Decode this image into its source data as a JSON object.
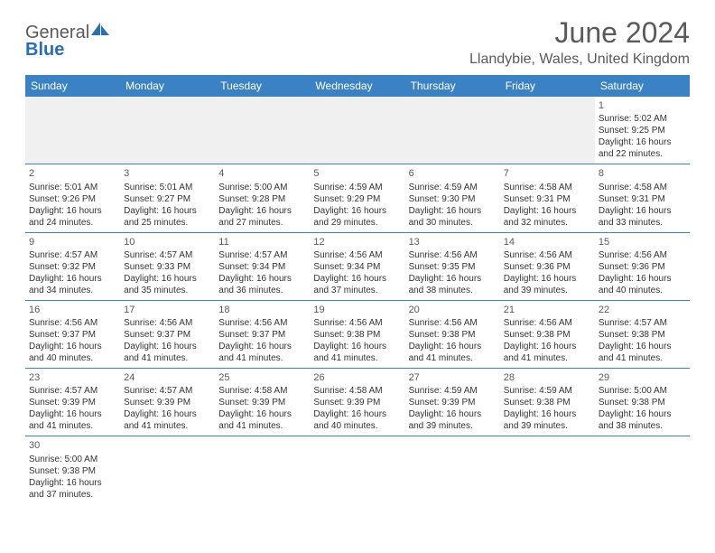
{
  "logo": {
    "text_general": "General",
    "text_blue": "Blue"
  },
  "header": {
    "month_title": "June 2024",
    "location": "Llandybie, Wales, United Kingdom"
  },
  "calendar": {
    "day_headers": [
      "Sunday",
      "Monday",
      "Tuesday",
      "Wednesday",
      "Thursday",
      "Friday",
      "Saturday"
    ],
    "header_bg": "#3b82c4",
    "header_fg": "#ffffff",
    "border_color": "#3b82c4",
    "blank_bg": "#f0f0f0",
    "weeks": [
      [
        null,
        null,
        null,
        null,
        null,
        null,
        {
          "n": "1",
          "sunrise": "Sunrise: 5:02 AM",
          "sunset": "Sunset: 9:25 PM",
          "dl1": "Daylight: 16 hours",
          "dl2": "and 22 minutes."
        }
      ],
      [
        {
          "n": "2",
          "sunrise": "Sunrise: 5:01 AM",
          "sunset": "Sunset: 9:26 PM",
          "dl1": "Daylight: 16 hours",
          "dl2": "and 24 minutes."
        },
        {
          "n": "3",
          "sunrise": "Sunrise: 5:01 AM",
          "sunset": "Sunset: 9:27 PM",
          "dl1": "Daylight: 16 hours",
          "dl2": "and 25 minutes."
        },
        {
          "n": "4",
          "sunrise": "Sunrise: 5:00 AM",
          "sunset": "Sunset: 9:28 PM",
          "dl1": "Daylight: 16 hours",
          "dl2": "and 27 minutes."
        },
        {
          "n": "5",
          "sunrise": "Sunrise: 4:59 AM",
          "sunset": "Sunset: 9:29 PM",
          "dl1": "Daylight: 16 hours",
          "dl2": "and 29 minutes."
        },
        {
          "n": "6",
          "sunrise": "Sunrise: 4:59 AM",
          "sunset": "Sunset: 9:30 PM",
          "dl1": "Daylight: 16 hours",
          "dl2": "and 30 minutes."
        },
        {
          "n": "7",
          "sunrise": "Sunrise: 4:58 AM",
          "sunset": "Sunset: 9:31 PM",
          "dl1": "Daylight: 16 hours",
          "dl2": "and 32 minutes."
        },
        {
          "n": "8",
          "sunrise": "Sunrise: 4:58 AM",
          "sunset": "Sunset: 9:31 PM",
          "dl1": "Daylight: 16 hours",
          "dl2": "and 33 minutes."
        }
      ],
      [
        {
          "n": "9",
          "sunrise": "Sunrise: 4:57 AM",
          "sunset": "Sunset: 9:32 PM",
          "dl1": "Daylight: 16 hours",
          "dl2": "and 34 minutes."
        },
        {
          "n": "10",
          "sunrise": "Sunrise: 4:57 AM",
          "sunset": "Sunset: 9:33 PM",
          "dl1": "Daylight: 16 hours",
          "dl2": "and 35 minutes."
        },
        {
          "n": "11",
          "sunrise": "Sunrise: 4:57 AM",
          "sunset": "Sunset: 9:34 PM",
          "dl1": "Daylight: 16 hours",
          "dl2": "and 36 minutes."
        },
        {
          "n": "12",
          "sunrise": "Sunrise: 4:56 AM",
          "sunset": "Sunset: 9:34 PM",
          "dl1": "Daylight: 16 hours",
          "dl2": "and 37 minutes."
        },
        {
          "n": "13",
          "sunrise": "Sunrise: 4:56 AM",
          "sunset": "Sunset: 9:35 PM",
          "dl1": "Daylight: 16 hours",
          "dl2": "and 38 minutes."
        },
        {
          "n": "14",
          "sunrise": "Sunrise: 4:56 AM",
          "sunset": "Sunset: 9:36 PM",
          "dl1": "Daylight: 16 hours",
          "dl2": "and 39 minutes."
        },
        {
          "n": "15",
          "sunrise": "Sunrise: 4:56 AM",
          "sunset": "Sunset: 9:36 PM",
          "dl1": "Daylight: 16 hours",
          "dl2": "and 40 minutes."
        }
      ],
      [
        {
          "n": "16",
          "sunrise": "Sunrise: 4:56 AM",
          "sunset": "Sunset: 9:37 PM",
          "dl1": "Daylight: 16 hours",
          "dl2": "and 40 minutes."
        },
        {
          "n": "17",
          "sunrise": "Sunrise: 4:56 AM",
          "sunset": "Sunset: 9:37 PM",
          "dl1": "Daylight: 16 hours",
          "dl2": "and 41 minutes."
        },
        {
          "n": "18",
          "sunrise": "Sunrise: 4:56 AM",
          "sunset": "Sunset: 9:37 PM",
          "dl1": "Daylight: 16 hours",
          "dl2": "and 41 minutes."
        },
        {
          "n": "19",
          "sunrise": "Sunrise: 4:56 AM",
          "sunset": "Sunset: 9:38 PM",
          "dl1": "Daylight: 16 hours",
          "dl2": "and 41 minutes."
        },
        {
          "n": "20",
          "sunrise": "Sunrise: 4:56 AM",
          "sunset": "Sunset: 9:38 PM",
          "dl1": "Daylight: 16 hours",
          "dl2": "and 41 minutes."
        },
        {
          "n": "21",
          "sunrise": "Sunrise: 4:56 AM",
          "sunset": "Sunset: 9:38 PM",
          "dl1": "Daylight: 16 hours",
          "dl2": "and 41 minutes."
        },
        {
          "n": "22",
          "sunrise": "Sunrise: 4:57 AM",
          "sunset": "Sunset: 9:38 PM",
          "dl1": "Daylight: 16 hours",
          "dl2": "and 41 minutes."
        }
      ],
      [
        {
          "n": "23",
          "sunrise": "Sunrise: 4:57 AM",
          "sunset": "Sunset: 9:39 PM",
          "dl1": "Daylight: 16 hours",
          "dl2": "and 41 minutes."
        },
        {
          "n": "24",
          "sunrise": "Sunrise: 4:57 AM",
          "sunset": "Sunset: 9:39 PM",
          "dl1": "Daylight: 16 hours",
          "dl2": "and 41 minutes."
        },
        {
          "n": "25",
          "sunrise": "Sunrise: 4:58 AM",
          "sunset": "Sunset: 9:39 PM",
          "dl1": "Daylight: 16 hours",
          "dl2": "and 41 minutes."
        },
        {
          "n": "26",
          "sunrise": "Sunrise: 4:58 AM",
          "sunset": "Sunset: 9:39 PM",
          "dl1": "Daylight: 16 hours",
          "dl2": "and 40 minutes."
        },
        {
          "n": "27",
          "sunrise": "Sunrise: 4:59 AM",
          "sunset": "Sunset: 9:39 PM",
          "dl1": "Daylight: 16 hours",
          "dl2": "and 39 minutes."
        },
        {
          "n": "28",
          "sunrise": "Sunrise: 4:59 AM",
          "sunset": "Sunset: 9:38 PM",
          "dl1": "Daylight: 16 hours",
          "dl2": "and 39 minutes."
        },
        {
          "n": "29",
          "sunrise": "Sunrise: 5:00 AM",
          "sunset": "Sunset: 9:38 PM",
          "dl1": "Daylight: 16 hours",
          "dl2": "and 38 minutes."
        }
      ],
      [
        {
          "n": "30",
          "sunrise": "Sunrise: 5:00 AM",
          "sunset": "Sunset: 9:38 PM",
          "dl1": "Daylight: 16 hours",
          "dl2": "and 37 minutes."
        },
        null,
        null,
        null,
        null,
        null,
        null
      ]
    ]
  }
}
